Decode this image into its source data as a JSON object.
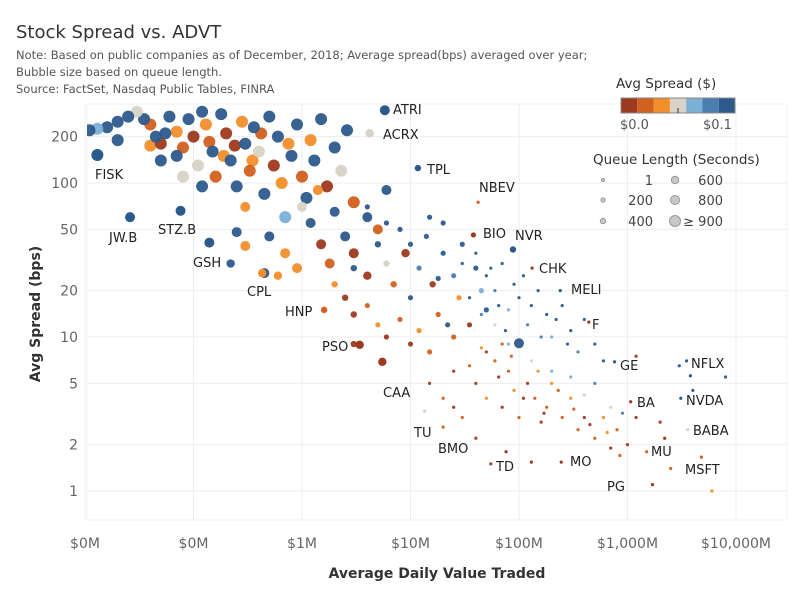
{
  "title": "Stock Spread vs. ADVT",
  "notes": [
    "Note: Based on public companies as of December, 2018; Average spread(bps) averaged over year;",
    "Bubble size based on queue length.",
    "Source: FactSet, Nasdaq Public Tables, FINRA"
  ],
  "legend": {
    "color_title": "Avg Spread ($)",
    "color_min_label": "$0.0",
    "color_max_label": "$0.1",
    "palette": [
      "#9c3a1f",
      "#d2601f",
      "#f28e2b",
      "#d8d3c6",
      "#7bafd6",
      "#4b7eb0",
      "#2c5a8b"
    ],
    "size_title": "Queue Length (Seconds)",
    "size_items": [
      {
        "label": "1",
        "value": 1
      },
      {
        "label": "200",
        "value": 200
      },
      {
        "label": "400",
        "value": 400
      },
      {
        "label": "600",
        "value": 600
      },
      {
        "label": "800",
        "value": 800
      },
      {
        "label": "≥ 900",
        "value": 900
      }
    ]
  },
  "chart_data": {
    "type": "scatter",
    "title": "Stock Spread vs. ADVT",
    "xlabel": "Average Daily Value Traded",
    "ylabel": "Avg Spread (bps)",
    "x_scale": "log",
    "y_scale": "log",
    "x_unit": "$M",
    "xlim": [
      0.0105,
      29500
    ],
    "ylim": [
      0.65,
      300
    ],
    "grid": true,
    "x_ticks": [
      {
        "value": 0.01,
        "label": "$0M"
      },
      {
        "value": 0.1,
        "label": "$0M"
      },
      {
        "value": 1,
        "label": "$1M"
      },
      {
        "value": 10,
        "label": "$10M"
      },
      {
        "value": 100,
        "label": "$100M"
      },
      {
        "value": 1000,
        "label": "$1,000M"
      },
      {
        "value": 10000,
        "label": "$10,000M"
      }
    ],
    "y_ticks": [
      {
        "value": 1,
        "label": "1"
      },
      {
        "value": 2,
        "label": "2"
      },
      {
        "value": 5,
        "label": "5"
      },
      {
        "value": 10,
        "label": "10"
      },
      {
        "value": 20,
        "label": "20"
      },
      {
        "value": 50,
        "label": "50"
      },
      {
        "value": 100,
        "label": "100"
      },
      {
        "value": 200,
        "label": "200"
      }
    ],
    "point_fields": [
      "advt_musd",
      "spread_bps",
      "spread_color_index",
      "queue_seconds"
    ],
    "labeled_points": [
      {
        "label": "ATRI",
        "advt": 5.8,
        "spread": 297,
        "color": 6,
        "queue": 800
      },
      {
        "label": "ACRX",
        "advt": 4.2,
        "spread": 210,
        "color": 3,
        "queue": 600
      },
      {
        "label": "TPL",
        "advt": 11.7,
        "spread": 125,
        "color": 6,
        "queue": 400
      },
      {
        "label": "NBEV",
        "advt": 42,
        "spread": 75,
        "color": 1,
        "queue": 1
      },
      {
        "label": "BIO",
        "advt": 38,
        "spread": 46,
        "color": 0,
        "queue": 200
      },
      {
        "label": "NVR",
        "advt": 88,
        "spread": 37,
        "color": 6,
        "queue": 400
      },
      {
        "label": "CHK",
        "advt": 132,
        "spread": 28,
        "color": 0,
        "queue": 1
      },
      {
        "label": "MELI",
        "advt": 240,
        "spread": 20,
        "color": 6,
        "queue": 1
      },
      {
        "label": "F",
        "advt": 440,
        "spread": 12.5,
        "color": 0,
        "queue": 1
      },
      {
        "label": "GE",
        "advt": 760,
        "spread": 6.9,
        "color": 6,
        "queue": 1
      },
      {
        "label": "NFLX",
        "advt": 3800,
        "spread": 5.6,
        "color": 6,
        "queue": 1
      },
      {
        "label": "NVDA",
        "advt": 3100,
        "spread": 4.0,
        "color": 6,
        "queue": 1
      },
      {
        "label": "BA",
        "advt": 1070,
        "spread": 3.8,
        "color": 0,
        "queue": 1
      },
      {
        "label": "BABA",
        "advt": 3600,
        "spread": 2.5,
        "color": 3,
        "queue": 1
      },
      {
        "label": "MU",
        "advt": 2200,
        "spread": 2.2,
        "color": 0,
        "queue": 1
      },
      {
        "label": "MSFT",
        "advt": 4800,
        "spread": 1.66,
        "color": 1,
        "queue": 1
      },
      {
        "label": "PG",
        "advt": 1700,
        "spread": 1.1,
        "color": 0,
        "queue": 1
      },
      {
        "label": "MO",
        "advt": 245,
        "spread": 1.54,
        "color": 0,
        "queue": 1
      },
      {
        "label": "TD",
        "advt": 130,
        "spread": 1.54,
        "color": 0,
        "queue": 1
      },
      {
        "label": "BMO",
        "advt": 76,
        "spread": 1.8,
        "color": 0,
        "queue": 1
      },
      {
        "label": "TU",
        "advt": 13.5,
        "spread": 3.3,
        "color": 3,
        "queue": 1
      },
      {
        "label": "CAA",
        "advt": 5.5,
        "spread": 6.9,
        "color": 0,
        "queue": 600
      },
      {
        "label": "PSO",
        "advt": 3.4,
        "spread": 8.9,
        "color": 0,
        "queue": 600
      },
      {
        "label": "HNP",
        "advt": 1.6,
        "spread": 15,
        "color": 1,
        "queue": 400
      },
      {
        "label": "CPL",
        "advt": 0.43,
        "spread": 26,
        "color": 2,
        "queue": 600
      },
      {
        "label": "GSH",
        "advt": 0.14,
        "spread": 41,
        "color": 6,
        "queue": 800
      },
      {
        "label": "STZ.B",
        "advt": 0.076,
        "spread": 66,
        "color": 6,
        "queue": 800
      },
      {
        "label": "JW.B",
        "advt": 0.026,
        "spread": 60,
        "color": 6,
        "queue": 800
      },
      {
        "label": "FISK",
        "advt": 0.013,
        "spread": 152,
        "color": 6,
        "queue": 900
      }
    ],
    "points": [
      [
        0.011,
        220,
        6,
        900
      ],
      [
        0.013,
        225,
        4,
        900
      ],
      [
        0.016,
        230,
        6,
        900
      ],
      [
        0.02,
        250,
        6,
        900
      ],
      [
        0.025,
        270,
        6,
        900
      ],
      [
        0.03,
        290,
        3,
        900
      ],
      [
        0.035,
        260,
        6,
        900
      ],
      [
        0.04,
        240,
        1,
        900
      ],
      [
        0.045,
        200,
        6,
        900
      ],
      [
        0.05,
        180,
        0,
        900
      ],
      [
        0.055,
        210,
        6,
        900
      ],
      [
        0.06,
        270,
        6,
        900
      ],
      [
        0.07,
        150,
        6,
        900
      ],
      [
        0.08,
        170,
        1,
        900
      ],
      [
        0.09,
        260,
        6,
        900
      ],
      [
        0.1,
        200,
        0,
        900
      ],
      [
        0.11,
        130,
        3,
        900
      ],
      [
        0.12,
        290,
        6,
        900
      ],
      [
        0.13,
        240,
        2,
        900
      ],
      [
        0.15,
        160,
        6,
        900
      ],
      [
        0.16,
        110,
        1,
        900
      ],
      [
        0.18,
        280,
        6,
        900
      ],
      [
        0.2,
        210,
        0,
        900
      ],
      [
        0.22,
        140,
        6,
        900
      ],
      [
        0.25,
        95,
        6,
        900
      ],
      [
        0.28,
        250,
        2,
        900
      ],
      [
        0.3,
        180,
        6,
        900
      ],
      [
        0.33,
        120,
        1,
        900
      ],
      [
        0.36,
        230,
        6,
        900
      ],
      [
        0.4,
        160,
        3,
        900
      ],
      [
        0.45,
        85,
        6,
        900
      ],
      [
        0.5,
        270,
        6,
        900
      ],
      [
        0.55,
        130,
        0,
        900
      ],
      [
        0.6,
        200,
        6,
        900
      ],
      [
        0.65,
        100,
        2,
        900
      ],
      [
        0.7,
        60,
        4,
        900
      ],
      [
        0.8,
        150,
        6,
        900
      ],
      [
        0.9,
        240,
        6,
        900
      ],
      [
        1.0,
        110,
        1,
        900
      ],
      [
        1.1,
        80,
        6,
        900
      ],
      [
        1.2,
        190,
        2,
        900
      ],
      [
        1.3,
        140,
        6,
        900
      ],
      [
        1.5,
        260,
        6,
        900
      ],
      [
        1.7,
        95,
        0,
        900
      ],
      [
        2,
        170,
        6,
        900
      ],
      [
        2.3,
        120,
        3,
        900
      ],
      [
        2.6,
        220,
        6,
        900
      ],
      [
        3,
        75,
        1,
        900
      ],
      [
        0.02,
        190,
        6,
        900
      ],
      [
        0.05,
        140,
        6,
        900
      ],
      [
        0.08,
        110,
        3,
        900
      ],
      [
        0.12,
        95,
        6,
        900
      ],
      [
        0.04,
        175,
        2,
        900
      ],
      [
        0.07,
        215,
        2,
        900
      ],
      [
        0.14,
        185,
        1,
        900
      ],
      [
        0.19,
        150,
        2,
        900
      ],
      [
        0.24,
        175,
        0,
        900
      ],
      [
        0.35,
        140,
        2,
        900
      ],
      [
        0.42,
        210,
        1,
        900
      ],
      [
        0.75,
        180,
        2,
        900
      ],
      [
        0.3,
        70,
        2,
        800
      ],
      [
        0.5,
        45,
        6,
        800
      ],
      [
        0.7,
        35,
        2,
        800
      ],
      [
        0.9,
        28,
        2,
        800
      ],
      [
        1.2,
        55,
        6,
        800
      ],
      [
        1.5,
        40,
        0,
        800
      ],
      [
        1.8,
        30,
        1,
        800
      ],
      [
        2.5,
        45,
        6,
        800
      ],
      [
        3,
        35,
        0,
        800
      ],
      [
        4,
        60,
        6,
        800
      ],
      [
        5,
        50,
        1,
        800
      ],
      [
        6,
        90,
        6,
        800
      ],
      [
        0.25,
        48,
        6,
        800
      ],
      [
        0.22,
        30,
        6,
        600
      ],
      [
        0.6,
        25,
        2,
        600
      ],
      [
        0.45,
        26,
        6,
        800
      ],
      [
        0.3,
        39,
        2,
        800
      ],
      [
        1,
        70,
        3,
        800
      ],
      [
        1.4,
        90,
        2,
        800
      ],
      [
        2,
        65,
        6,
        800
      ],
      [
        2,
        22,
        2,
        400
      ],
      [
        2.5,
        18,
        0,
        400
      ],
      [
        3,
        28,
        6,
        400
      ],
      [
        4,
        25,
        0,
        600
      ],
      [
        5,
        40,
        6,
        400
      ],
      [
        6,
        30,
        3,
        400
      ],
      [
        7,
        22,
        1,
        400
      ],
      [
        8,
        50,
        6,
        200
      ],
      [
        9,
        35,
        0,
        600
      ],
      [
        10,
        18,
        6,
        200
      ],
      [
        12,
        28,
        5,
        200
      ],
      [
        14,
        45,
        6,
        200
      ],
      [
        16,
        22,
        0,
        400
      ],
      [
        18,
        14,
        1,
        200
      ],
      [
        20,
        35,
        6,
        200
      ],
      [
        25,
        25,
        5,
        200
      ],
      [
        28,
        18,
        2,
        200
      ],
      [
        30,
        40,
        6,
        200
      ],
      [
        35,
        12,
        0,
        200
      ],
      [
        40,
        28,
        6,
        200
      ],
      [
        45,
        20,
        4,
        200
      ],
      [
        50,
        15,
        6,
        200
      ],
      [
        3,
        14,
        0,
        400
      ],
      [
        4,
        16,
        1,
        200
      ],
      [
        5,
        12,
        2,
        200
      ],
      [
        6,
        10,
        0,
        200
      ],
      [
        8,
        13,
        1,
        200
      ],
      [
        10,
        9,
        0,
        200
      ],
      [
        12,
        11,
        2,
        200
      ],
      [
        15,
        8,
        1,
        200
      ],
      [
        18,
        24,
        6,
        200
      ],
      [
        22,
        12,
        6,
        200
      ],
      [
        4,
        70,
        6,
        200
      ],
      [
        6,
        55,
        6,
        200
      ],
      [
        10,
        40,
        6,
        200
      ],
      [
        15,
        60,
        6,
        200
      ],
      [
        20,
        55,
        6,
        200
      ],
      [
        3,
        9,
        0,
        400
      ],
      [
        25,
        10,
        1,
        200
      ],
      [
        100,
        9.1,
        6,
        800
      ],
      [
        30,
        30,
        6,
        1
      ],
      [
        40,
        35,
        6,
        1
      ],
      [
        50,
        25,
        6,
        1
      ],
      [
        60,
        20,
        5,
        1
      ],
      [
        70,
        30,
        6,
        1
      ],
      [
        80,
        15,
        4,
        1
      ],
      [
        90,
        22,
        6,
        1
      ],
      [
        100,
        18,
        6,
        1
      ],
      [
        120,
        12,
        5,
        1
      ],
      [
        150,
        20,
        6,
        1
      ],
      [
        180,
        14,
        6,
        1
      ],
      [
        200,
        10,
        4,
        1
      ],
      [
        250,
        16,
        6,
        1
      ],
      [
        300,
        11,
        6,
        1
      ],
      [
        350,
        8,
        5,
        1
      ],
      [
        400,
        13,
        6,
        1
      ],
      [
        500,
        9,
        6,
        1
      ],
      [
        600,
        7,
        6,
        1
      ],
      [
        60,
        12,
        3,
        1
      ],
      [
        80,
        9,
        4,
        1
      ],
      [
        35,
        18,
        6,
        1
      ],
      [
        45,
        14,
        5,
        1
      ],
      [
        55,
        28,
        6,
        1
      ],
      [
        65,
        16,
        6,
        1
      ],
      [
        75,
        11,
        6,
        1
      ],
      [
        110,
        25,
        6,
        1
      ],
      [
        130,
        16,
        6,
        1
      ],
      [
        160,
        10,
        5,
        1
      ],
      [
        220,
        13,
        6,
        1
      ],
      [
        280,
        9,
        6,
        1
      ],
      [
        15,
        5,
        0,
        1
      ],
      [
        20,
        4,
        1,
        1
      ],
      [
        25,
        6,
        0,
        1
      ],
      [
        30,
        3,
        1,
        1
      ],
      [
        40,
        5,
        0,
        1
      ],
      [
        50,
        4,
        2,
        1
      ],
      [
        60,
        7,
        1,
        1
      ],
      [
        70,
        3.5,
        0,
        1
      ],
      [
        80,
        6,
        1,
        1
      ],
      [
        90,
        4.5,
        2,
        1
      ],
      [
        100,
        3,
        1,
        1
      ],
      [
        120,
        5,
        0,
        1
      ],
      [
        140,
        4,
        1,
        1
      ],
      [
        160,
        2.8,
        0,
        1
      ],
      [
        180,
        3.5,
        1,
        1
      ],
      [
        200,
        5,
        2,
        1
      ],
      [
        250,
        3,
        1,
        1
      ],
      [
        300,
        4,
        2,
        1
      ],
      [
        350,
        2.5,
        1,
        1
      ],
      [
        400,
        3,
        0,
        1
      ],
      [
        500,
        2.2,
        1,
        1
      ],
      [
        600,
        3,
        2,
        1
      ],
      [
        700,
        1.9,
        0,
        1
      ],
      [
        800,
        2.5,
        1,
        1
      ],
      [
        1000,
        2,
        0,
        1
      ],
      [
        1200,
        3,
        0,
        1
      ],
      [
        1500,
        1.8,
        1,
        1
      ],
      [
        2000,
        2.8,
        0,
        1
      ],
      [
        2500,
        1.4,
        1,
        1
      ],
      [
        3000,
        6.5,
        6,
        1
      ],
      [
        3500,
        7,
        6,
        1
      ],
      [
        4000,
        4.5,
        6,
        1
      ],
      [
        8000,
        5.5,
        6,
        1
      ],
      [
        6000,
        1.0,
        2,
        1
      ],
      [
        1200,
        7.5,
        0,
        1
      ],
      [
        20,
        2.6,
        1,
        1
      ],
      [
        25,
        3.5,
        0,
        1
      ],
      [
        40,
        2.2,
        0,
        1
      ],
      [
        55,
        1.5,
        0,
        1
      ],
      [
        50,
        8,
        0,
        1
      ],
      [
        70,
        9,
        1,
        1
      ],
      [
        130,
        7,
        3,
        1
      ],
      [
        200,
        6,
        4,
        1
      ],
      [
        300,
        5.5,
        4,
        1
      ],
      [
        400,
        4.2,
        3,
        1
      ],
      [
        500,
        5,
        5,
        1
      ],
      [
        700,
        3.5,
        3,
        1
      ],
      [
        900,
        3.2,
        5,
        1
      ],
      [
        35,
        6.5,
        1,
        1
      ],
      [
        45,
        8.5,
        2,
        1
      ],
      [
        65,
        5.5,
        0,
        1
      ],
      [
        85,
        7.5,
        1,
        1
      ],
      [
        110,
        4,
        0,
        1
      ],
      [
        150,
        6,
        2,
        1
      ],
      [
        170,
        3.2,
        0,
        1
      ],
      [
        230,
        4.5,
        1,
        1
      ],
      [
        320,
        3.4,
        1,
        1
      ],
      [
        450,
        2.7,
        0,
        1
      ],
      [
        650,
        2.4,
        2,
        1
      ],
      [
        850,
        1.7,
        1,
        1
      ]
    ]
  }
}
